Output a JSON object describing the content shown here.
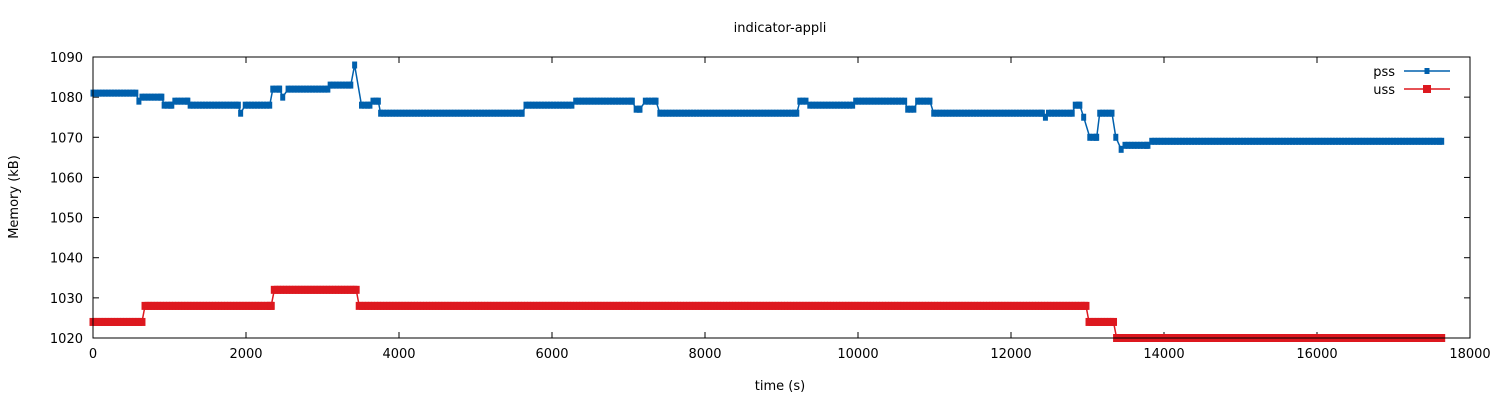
{
  "chart_data": {
    "type": "line",
    "title": "indicator-appli",
    "xlabel": "time (s)",
    "ylabel": "Memory (kB)",
    "xlim": [
      0,
      18000
    ],
    "ylim": [
      1020,
      1090
    ],
    "xticks": [
      0,
      2000,
      4000,
      6000,
      8000,
      10000,
      12000,
      14000,
      16000,
      18000
    ],
    "yticks": [
      1020,
      1030,
      1040,
      1050,
      1060,
      1070,
      1080,
      1090
    ],
    "grid": false,
    "legend": "top-right",
    "sample_interval": 40,
    "series": [
      {
        "name": "pss",
        "color": "#0060ad",
        "marker": "circle",
        "steps": [
          [
            0,
            560,
            1081
          ],
          [
            600,
            600,
            1079
          ],
          [
            640,
            900,
            1080
          ],
          [
            930,
            1030,
            1078
          ],
          [
            1070,
            1240,
            1079
          ],
          [
            1270,
            1900,
            1078
          ],
          [
            1930,
            1930,
            1076
          ],
          [
            1990,
            2310,
            1078
          ],
          [
            2350,
            2440,
            1082
          ],
          [
            2480,
            2480,
            1080
          ],
          [
            2550,
            3070,
            1082
          ],
          [
            3100,
            3370,
            1083
          ],
          [
            3420,
            3420,
            1088
          ],
          [
            3510,
            3620,
            1078
          ],
          [
            3660,
            3730,
            1079
          ],
          [
            3760,
            5610,
            1076
          ],
          [
            5660,
            6260,
            1078
          ],
          [
            6310,
            7050,
            1079
          ],
          [
            7100,
            7150,
            1077
          ],
          [
            7220,
            7360,
            1079
          ],
          [
            7410,
            9200,
            1076
          ],
          [
            9240,
            9320,
            1079
          ],
          [
            9370,
            9930,
            1078
          ],
          [
            9970,
            10610,
            1079
          ],
          [
            10650,
            10730,
            1077
          ],
          [
            10780,
            10940,
            1079
          ],
          [
            10990,
            12410,
            1076
          ],
          [
            12450,
            12450,
            1075
          ],
          [
            12490,
            12800,
            1076
          ],
          [
            12840,
            12900,
            1078
          ],
          [
            12950,
            12950,
            1075
          ],
          [
            13030,
            13120,
            1070
          ],
          [
            13160,
            13320,
            1076
          ],
          [
            13370,
            13370,
            1070
          ],
          [
            13440,
            13440,
            1067
          ],
          [
            13490,
            13790,
            1068
          ],
          [
            13840,
            17630,
            1069
          ]
        ]
      },
      {
        "name": "uss",
        "color": "#dd181f",
        "marker": "square",
        "steps": [
          [
            0,
            640,
            1024
          ],
          [
            680,
            2330,
            1028
          ],
          [
            2370,
            3440,
            1032
          ],
          [
            3480,
            12980,
            1028
          ],
          [
            13020,
            13340,
            1024
          ],
          [
            13380,
            17630,
            1020
          ]
        ]
      }
    ]
  }
}
